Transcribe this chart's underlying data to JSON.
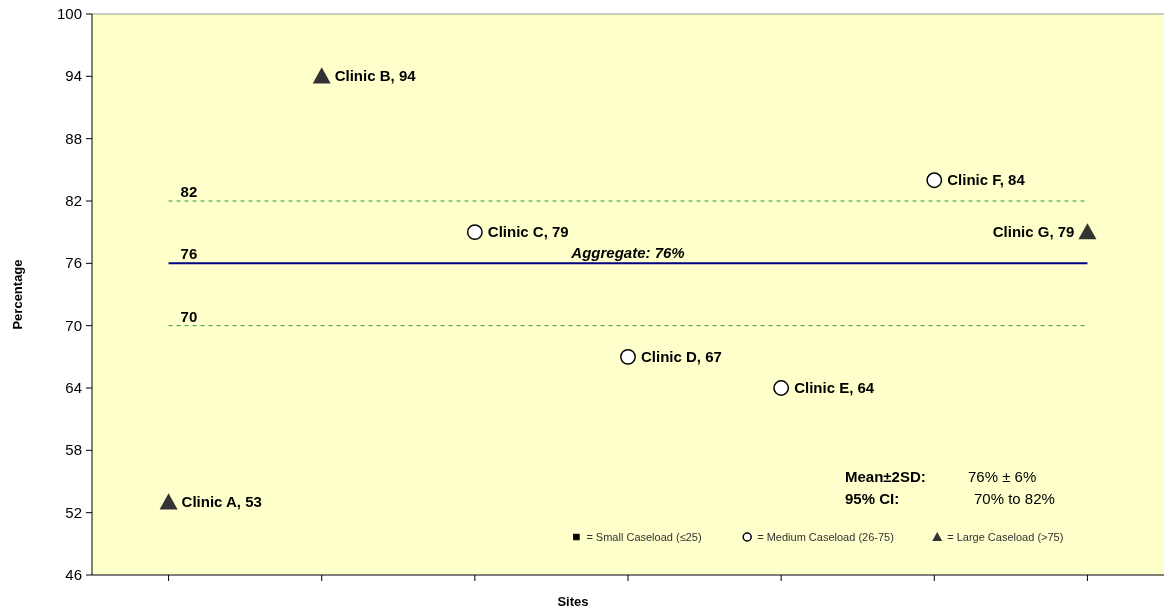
{
  "chart_data": {
    "type": "scatter",
    "xlabel": "Sites",
    "ylabel": "Percentage",
    "categories": [
      null,
      null,
      null,
      null,
      null,
      null,
      null
    ],
    "ylim": [
      46,
      100
    ],
    "yticks": [
      46,
      52,
      58,
      64,
      70,
      76,
      82,
      88,
      94,
      100
    ],
    "tick_labels": "y",
    "grid": false,
    "legend": "bottom right",
    "series": [
      {
        "name": "= Small Caseload (≤25)",
        "marker": "square",
        "color": "#000000",
        "values": [
          null,
          null,
          null,
          null,
          null,
          null,
          null
        ],
        "value_labels": [
          null,
          null,
          null,
          null,
          null,
          null,
          null
        ]
      },
      {
        "name": "= Medium Caseload (26-75)",
        "marker": "circle",
        "color": "#ffffff",
        "values": [
          null,
          null,
          79,
          67,
          64,
          84,
          null
        ],
        "value_labels": [
          null,
          null,
          "Clinic C, 79",
          "Clinic D, 67",
          "Clinic E, 64",
          "Clinic F, 84",
          null
        ]
      },
      {
        "name": "= Large Caseload (>75)",
        "marker": "triangle",
        "color": "#333333",
        "values": [
          53,
          94,
          null,
          null,
          null,
          null,
          79
        ],
        "value_labels": [
          "Clinic A, 53",
          "Clinic B, 94",
          null,
          null,
          null,
          null,
          "Clinic G, 79"
        ]
      }
    ],
    "ref_lines": [
      {
        "axis": "y",
        "value": 82,
        "label": "82",
        "color": "#339933",
        "line_style": "dashed"
      },
      {
        "axis": "y",
        "value": 76,
        "label": "76",
        "color": "#000080",
        "line_style": "solid"
      },
      {
        "axis": "y",
        "value": 70,
        "label": "70",
        "color": "#339933",
        "line_style": "dashed"
      }
    ],
    "annotations": [
      {
        "text": "Aggregate: 76%",
        "y": 76
      },
      "Mean±2SD:",
      "76% ± 6%",
      "95% CI:",
      "70% to 82%"
    ]
  }
}
